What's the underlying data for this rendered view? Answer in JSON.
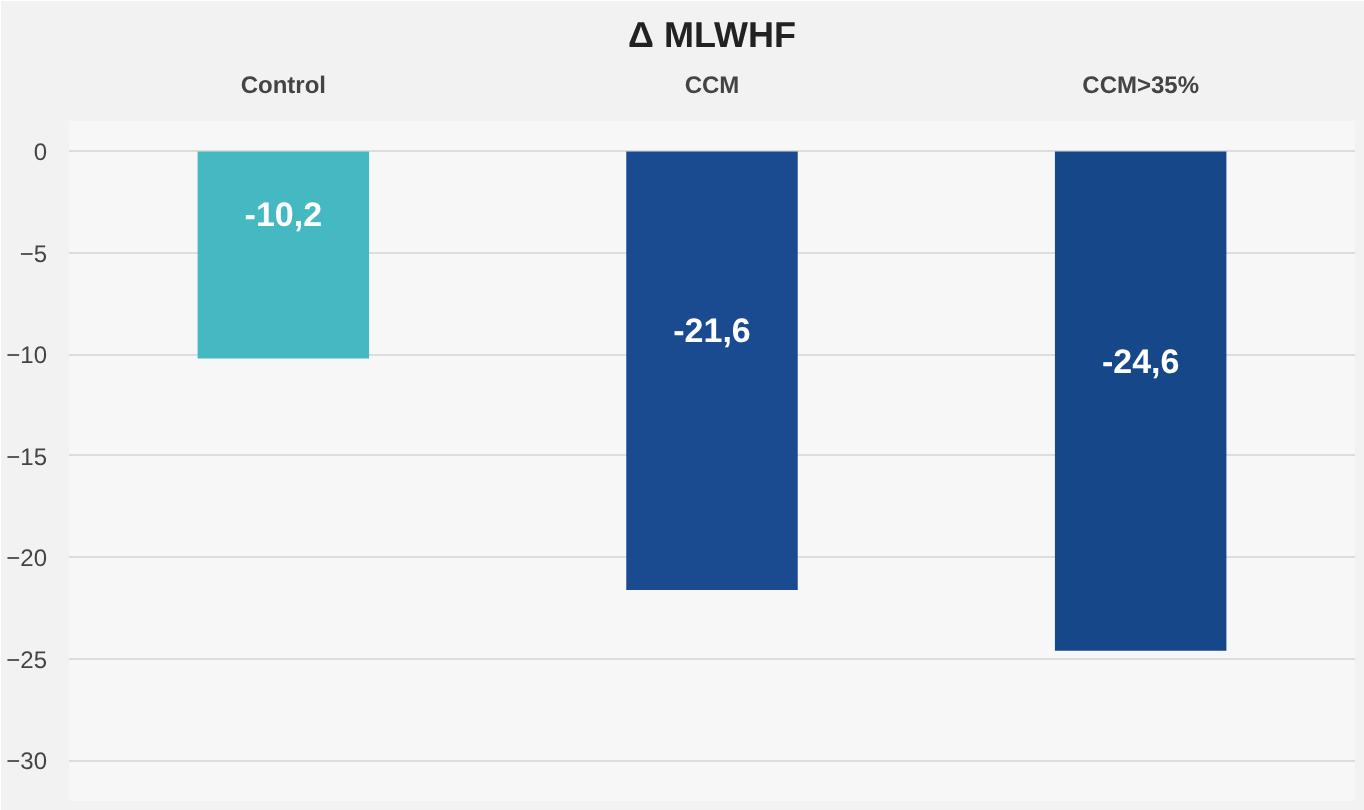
{
  "chart_data": {
    "type": "bar",
    "title": "Δ MLWHF",
    "categories": [
      "Control",
      "CCM",
      "CCM>35%"
    ],
    "values": [
      -10.2,
      -21.6,
      -24.6
    ],
    "value_labels": [
      "-10,2",
      "-21,6",
      "-24,6"
    ],
    "colors": [
      "#45b9c1",
      "#1a4a90",
      "#154789"
    ],
    "ylim": [
      -32,
      1.5
    ],
    "yticks": [
      0,
      -5,
      -10,
      -15,
      -20,
      -25,
      -30
    ],
    "grid": "y"
  }
}
